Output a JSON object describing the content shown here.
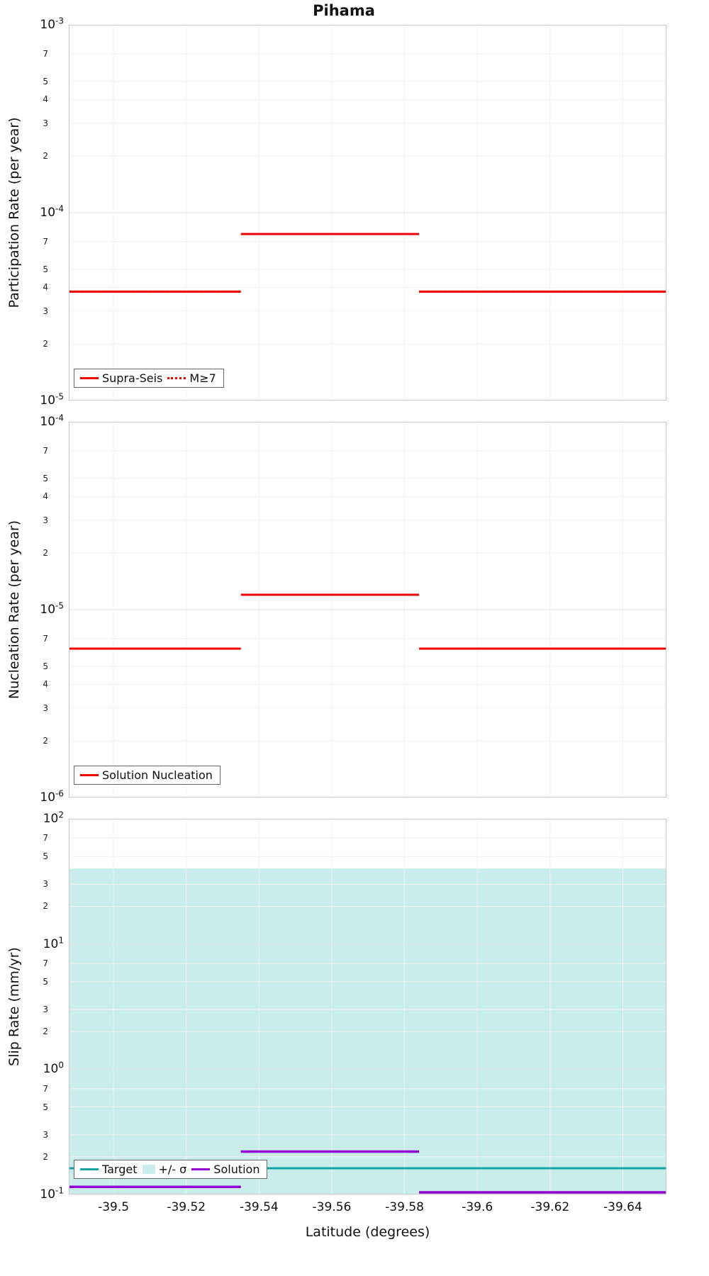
{
  "title": "Pihama",
  "colors": {
    "red": "#ee0000",
    "teal": "#16a3a3",
    "band": "#c9eded",
    "purple": "#9400d3",
    "grid_major": "#e2e2e2",
    "grid_minor": "#f0f0f0",
    "frame": "#c9c9c9"
  },
  "x_axis": {
    "label": "Latitude (degrees)",
    "range": [
      -39.4877,
      -39.652
    ],
    "ticks": [
      {
        "value": -39.5,
        "label": "-39.5"
      },
      {
        "value": -39.52,
        "label": "-39.52"
      },
      {
        "value": -39.54,
        "label": "-39.54"
      },
      {
        "value": -39.56,
        "label": "-39.56"
      },
      {
        "value": -39.58,
        "label": "-39.58"
      },
      {
        "value": -39.6,
        "label": "-39.6"
      },
      {
        "value": -39.62,
        "label": "-39.62"
      },
      {
        "value": -39.64,
        "label": "-39.64"
      }
    ]
  },
  "chart_data": [
    {
      "id": "participation",
      "type": "line",
      "ylabel": "Participation Rate (per year)",
      "y_scale": "log",
      "log_range": [
        -5,
        -3
      ],
      "minor_tick_digits": [
        7,
        5,
        4,
        3,
        2
      ],
      "series": [
        {
          "name": "Supra-Seis",
          "style": "solid",
          "width": 3,
          "color_key": "red",
          "segments": [
            [
              -39.4877,
              -39.535,
              3.8e-05
            ],
            [
              -39.535,
              -39.584,
              7.7e-05
            ],
            [
              -39.584,
              -39.652,
              3.8e-05
            ]
          ]
        },
        {
          "name": "M≥7",
          "style": "dotted",
          "width": 3,
          "color_key": "red",
          "segments": [
            [
              -39.4877,
              -39.535,
              3.8e-05
            ],
            [
              -39.584,
              -39.652,
              3.8e-05
            ]
          ]
        }
      ],
      "legend": [
        "Supra-Seis",
        "M≥7"
      ]
    },
    {
      "id": "nucleation",
      "type": "line",
      "ylabel": "Nucleation Rate (per year)",
      "y_scale": "log",
      "log_range": [
        -6,
        -4
      ],
      "minor_tick_digits": [
        7,
        5,
        4,
        3,
        2
      ],
      "series": [
        {
          "name": "Solution Nucleation",
          "style": "solid",
          "width": 3,
          "color_key": "red",
          "segments": [
            [
              -39.4877,
              -39.535,
              6.2e-06
            ],
            [
              -39.535,
              -39.584,
              1.2e-05
            ],
            [
              -39.584,
              -39.652,
              6.2e-06
            ]
          ]
        }
      ],
      "legend": [
        "Solution Nucleation"
      ]
    },
    {
      "id": "slip-rate",
      "type": "line",
      "ylabel": "Slip Rate (mm/yr)",
      "y_scale": "log",
      "log_range": [
        -1,
        2
      ],
      "minor_tick_digits": [
        7,
        5,
        3,
        2
      ],
      "band": {
        "name": "+/- σ",
        "color_key": "band",
        "x": [
          -39.4877,
          -39.652
        ],
        "y_top": 40,
        "y_bottom": 0.08
      },
      "series": [
        {
          "name": "Target",
          "style": "solid",
          "width": 3,
          "color_key": "teal",
          "segments": [
            [
              -39.4877,
              -39.652,
              0.162
            ]
          ]
        },
        {
          "name": "Solution",
          "style": "solid",
          "width": 3.5,
          "color_key": "purple",
          "segments": [
            [
              -39.4877,
              -39.535,
              0.115
            ],
            [
              -39.535,
              -39.584,
              0.22
            ],
            [
              -39.584,
              -39.652,
              0.104
            ]
          ]
        }
      ],
      "legend": [
        "Target",
        "+/- σ",
        "Solution"
      ]
    }
  ]
}
